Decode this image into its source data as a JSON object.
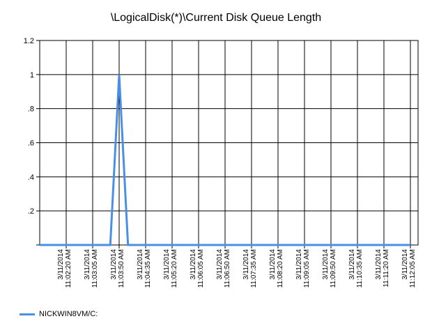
{
  "chart_data": {
    "type": "line",
    "title": "\\LogicalDisk(*)\\Current Disk Queue Length",
    "xlabel": "",
    "ylabel": "",
    "ylim": [
      0,
      1.2
    ],
    "y_ticks": [
      "",
      ".2",
      ".4",
      ".6",
      ".8",
      "1",
      "1.2"
    ],
    "x_ticks": [
      {
        "date": "3/11/2014",
        "time": "11:02:20 AM"
      },
      {
        "date": "3/11/2014",
        "time": "11:03:05 AM"
      },
      {
        "date": "3/11/2014",
        "time": "11:03:50 AM"
      },
      {
        "date": "3/11/2014",
        "time": "11:04:35 AM"
      },
      {
        "date": "3/11/2014",
        "time": "11:05:20 AM"
      },
      {
        "date": "3/11/2014",
        "time": "11:06:05 AM"
      },
      {
        "date": "3/11/2014",
        "time": "11:06:50 AM"
      },
      {
        "date": "3/11/2014",
        "time": "11:07:35 AM"
      },
      {
        "date": "3/11/2014",
        "time": "11:08:20 AM"
      },
      {
        "date": "3/11/2014",
        "time": "11:09:05 AM"
      },
      {
        "date": "3/11/2014",
        "time": "11:09:50 AM"
      },
      {
        "date": "3/11/2014",
        "time": "11:10:35 AM"
      },
      {
        "date": "3/11/2014",
        "time": "11:11:20 AM"
      },
      {
        "date": "3/11/2014",
        "time": "11:12:05 AM"
      }
    ],
    "grid": true,
    "legend_position": "bottom-left",
    "series": [
      {
        "name": "NICKWIN8VM/C:",
        "color": "#4a8fe7",
        "points": [
          {
            "x": "11:01:35 AM",
            "y": 0
          },
          {
            "x": "11:02:20 AM",
            "y": 0
          },
          {
            "x": "11:03:05 AM",
            "y": 0
          },
          {
            "x": "11:03:35 AM",
            "y": 0
          },
          {
            "x": "11:03:50 AM",
            "y": 1
          },
          {
            "x": "11:04:05 AM",
            "y": 0
          },
          {
            "x": "11:04:35 AM",
            "y": 0
          },
          {
            "x": "11:05:20 AM",
            "y": 0
          },
          {
            "x": "11:06:05 AM",
            "y": 0
          },
          {
            "x": "11:06:50 AM",
            "y": 0
          },
          {
            "x": "11:07:35 AM",
            "y": 0
          },
          {
            "x": "11:08:20 AM",
            "y": 0
          },
          {
            "x": "11:09:05 AM",
            "y": 0
          },
          {
            "x": "11:09:50 AM",
            "y": 0
          },
          {
            "x": "11:10:35 AM",
            "y": 0
          },
          {
            "x": "11:11:20 AM",
            "y": 0
          },
          {
            "x": "11:12:05 AM",
            "y": 0
          }
        ]
      }
    ]
  }
}
